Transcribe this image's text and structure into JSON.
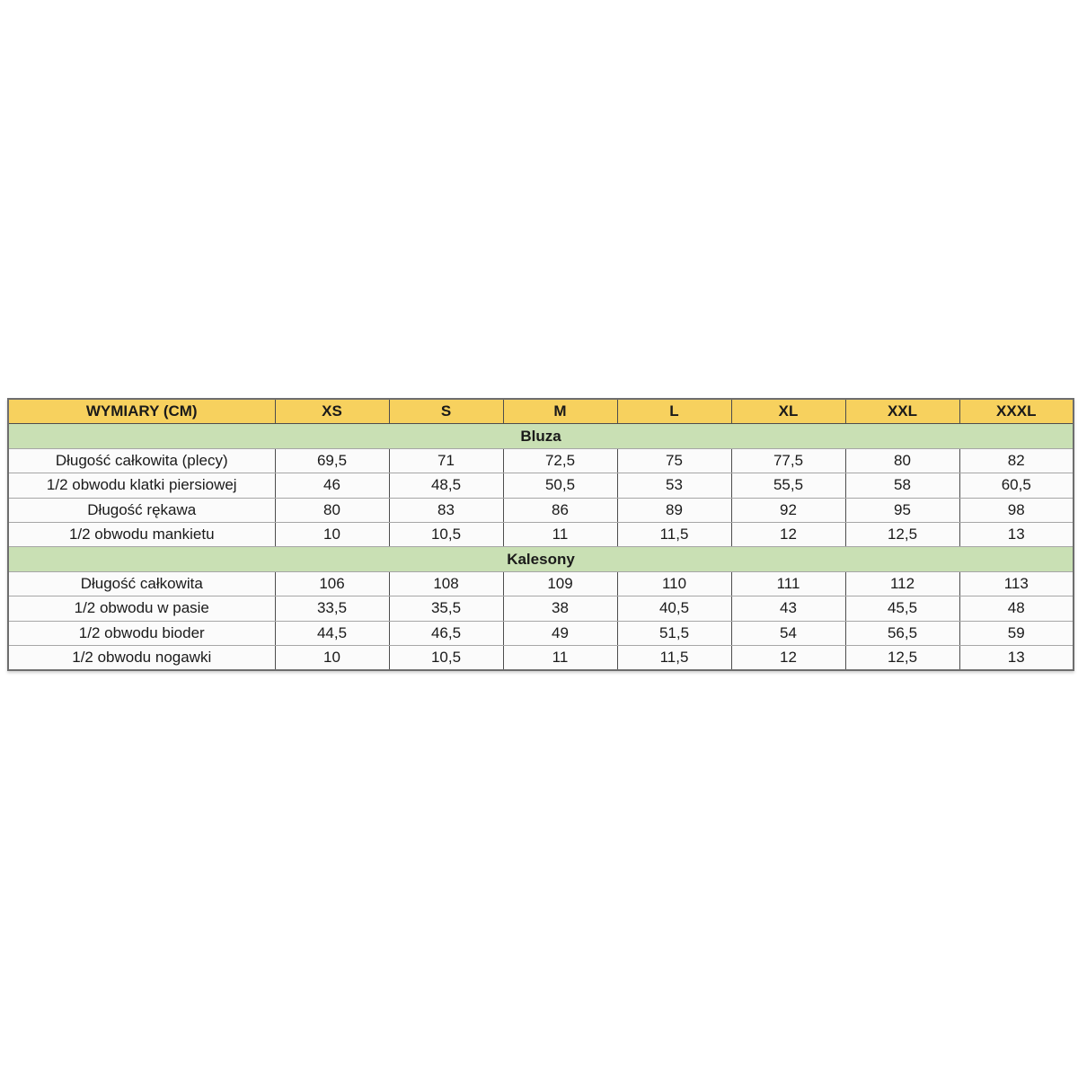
{
  "colors": {
    "header_bg": "#F7D15E",
    "section_bg": "#C9E0B4",
    "cell_bg": "#FBFBFB",
    "border_dark": "#4D4D4D",
    "border_light": "#A6A6A6"
  },
  "table": {
    "header": {
      "label": "WYMIARY (CM)",
      "sizes": [
        "XS",
        "S",
        "M",
        "L",
        "XL",
        "XXL",
        "XXXL"
      ]
    },
    "sections": [
      {
        "title": "Bluza",
        "rows": [
          {
            "label": "Długość całkowita (plecy)",
            "values": [
              "69,5",
              "71",
              "72,5",
              "75",
              "77,5",
              "80",
              "82"
            ]
          },
          {
            "label": "1/2 obwodu klatki piersiowej",
            "values": [
              "46",
              "48,5",
              "50,5",
              "53",
              "55,5",
              "58",
              "60,5"
            ]
          },
          {
            "label": "Długość rękawa",
            "values": [
              "80",
              "83",
              "86",
              "89",
              "92",
              "95",
              "98"
            ]
          },
          {
            "label": "1/2 obwodu mankietu",
            "values": [
              "10",
              "10,5",
              "11",
              "11,5",
              "12",
              "12,5",
              "13"
            ]
          }
        ]
      },
      {
        "title": "Kalesony",
        "rows": [
          {
            "label": "Długość całkowita",
            "values": [
              "106",
              "108",
              "109",
              "110",
              "111",
              "112",
              "113"
            ]
          },
          {
            "label": "1/2 obwodu w pasie",
            "values": [
              "33,5",
              "35,5",
              "38",
              "40,5",
              "43",
              "45,5",
              "48"
            ]
          },
          {
            "label": "1/2 obwodu bioder",
            "values": [
              "44,5",
              "46,5",
              "49",
              "51,5",
              "54",
              "56,5",
              "59"
            ]
          },
          {
            "label": "1/2 obwodu nogawki",
            "values": [
              "10",
              "10,5",
              "11",
              "11,5",
              "12",
              "12,5",
              "13"
            ]
          }
        ]
      }
    ]
  }
}
